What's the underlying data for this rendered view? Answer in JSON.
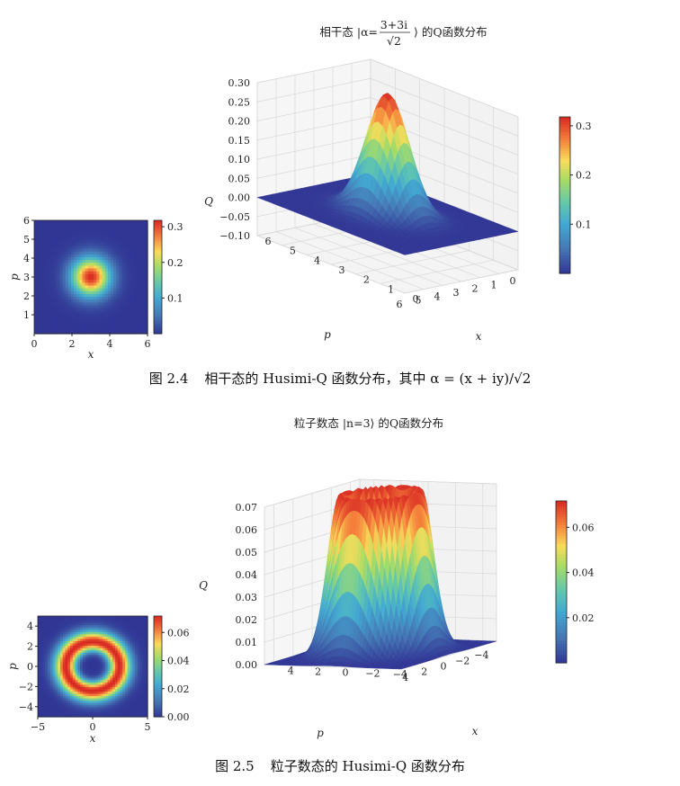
{
  "figures": [
    {
      "id": "fig1",
      "caption_num": "图 2.4",
      "caption": "相干态的 Husimi-Q 函数分布，其中 α = (x + iy)/√2",
      "chart_data": [
        {
          "type": "heatmap",
          "description_free": true,
          "xlabel": "x",
          "ylabel": "p",
          "xlim": [
            0,
            6
          ],
          "ylim": [
            0,
            6
          ],
          "xticks": [
            "0",
            "2",
            "4",
            "6"
          ],
          "yticks": [
            "1",
            "2",
            "3",
            "4",
            "5",
            "6"
          ],
          "center": [
            3,
            3
          ],
          "sigma": 0.707,
          "peak": 0.318,
          "colorbar_ticks": [
            "0.1",
            "0.2",
            "0.3"
          ],
          "colorbar_range": [
            0,
            0.318
          ]
        },
        {
          "type": "surface",
          "title": "相干态 |α=(3+3i)/√2⟩ 的Q函数分布",
          "title_parts": {
            "pre": "相干态 |α=",
            "num": "3+3i",
            "den": "√2",
            "post": "⟩ 的Q函数分布"
          },
          "xlabel": "x",
          "ylabel": "p",
          "zlabel": "Q",
          "xlim": [
            0,
            6
          ],
          "ylim": [
            0,
            6
          ],
          "zlim": [
            -0.1,
            0.3
          ],
          "xticks": [
            "0",
            "1",
            "2",
            "3",
            "4",
            "5",
            "6"
          ],
          "yticks": [
            "0",
            "1",
            "2",
            "3",
            "4",
            "5",
            "6"
          ],
          "zticks": [
            "−0.10",
            "−0.05",
            "0.00",
            "0.05",
            "0.10",
            "0.15",
            "0.20",
            "0.25",
            "0.30"
          ],
          "colorbar_ticks": [
            "0.1",
            "0.2",
            "0.3"
          ],
          "center": [
            3,
            3
          ],
          "sigma": 0.707,
          "peak": 0.318
        }
      ]
    },
    {
      "id": "fig2",
      "caption_num": "图 2.5",
      "caption": "粒子数态的 Husimi-Q 函数分布",
      "chart_data": [
        {
          "type": "heatmap",
          "xlabel": "x",
          "ylabel": "p",
          "xlim": [
            -5,
            5
          ],
          "ylim": [
            -5,
            5
          ],
          "xticks": [
            "−5",
            "0",
            "5"
          ],
          "yticks": [
            "−4",
            "−2",
            "0",
            "2",
            "4"
          ],
          "fock_n": 3,
          "peak": 0.0717,
          "colorbar_ticks": [
            "0.00",
            "0.02",
            "0.04",
            "0.06"
          ],
          "colorbar_range": [
            0,
            0.0717
          ]
        },
        {
          "type": "surface",
          "title": "粒子数态 |n=3⟩ 的Q函数分布",
          "xlabel": "x",
          "ylabel": "p",
          "zlabel": "Q",
          "xlim": [
            -5,
            5
          ],
          "ylim": [
            -5,
            5
          ],
          "zlim": [
            0,
            0.07
          ],
          "xticks": [
            "−4",
            "−2",
            "0",
            "2",
            "4"
          ],
          "yticks": [
            "−4",
            "−2",
            "0",
            "2",
            "4"
          ],
          "zticks": [
            "0.00",
            "0.01",
            "0.02",
            "0.03",
            "0.04",
            "0.05",
            "0.06",
            "0.07"
          ],
          "colorbar_ticks": [
            "0.02",
            "0.04",
            "0.06"
          ],
          "fock_n": 3,
          "peak": 0.0717
        }
      ]
    }
  ]
}
